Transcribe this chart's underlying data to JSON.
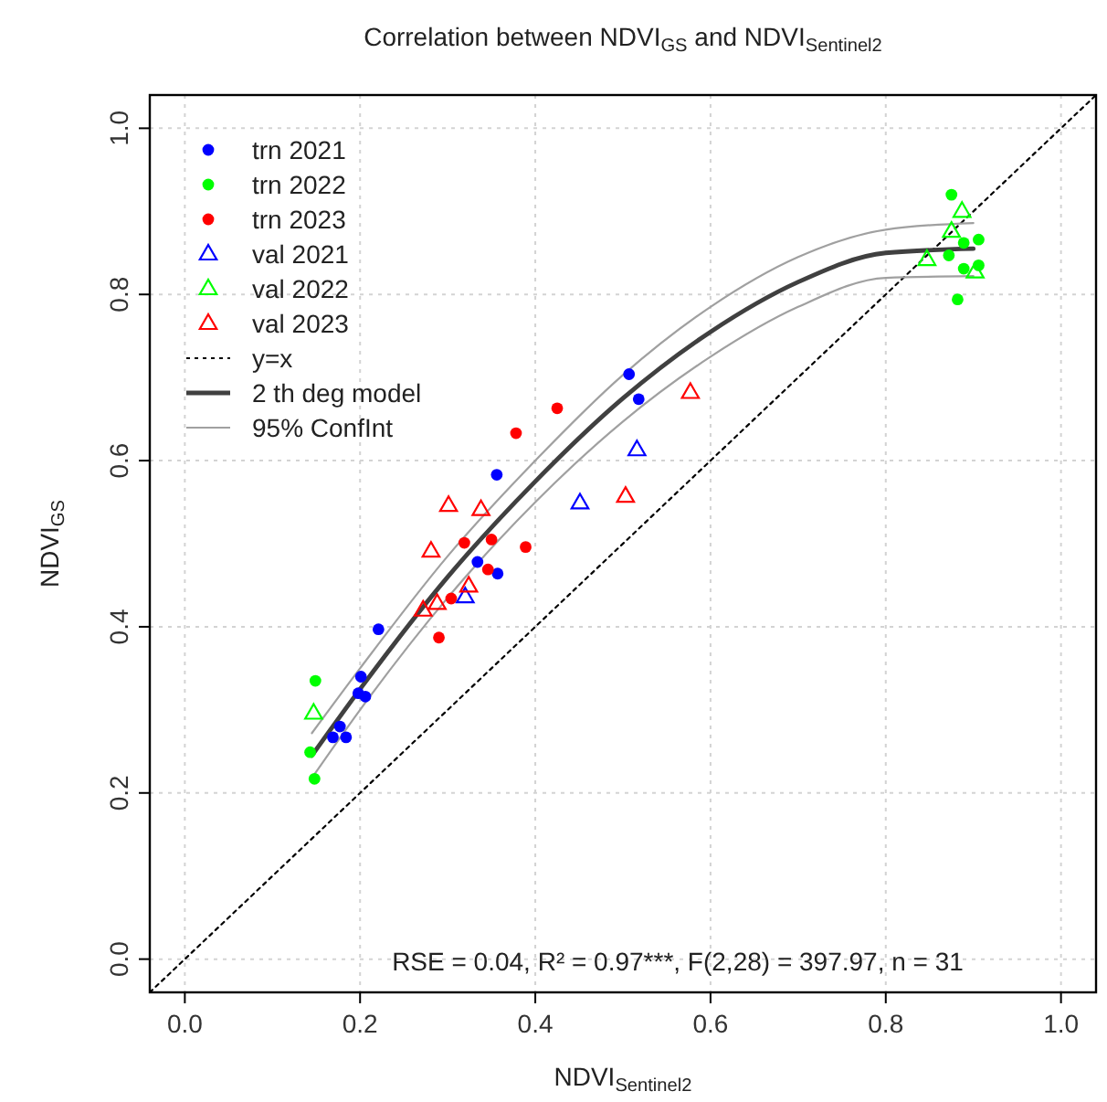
{
  "chart_data": {
    "type": "scatter",
    "title": "Correlation between NDVI$_{GS}$ and NDVI$_{Sentinel2}$",
    "xlabel": "NDVI$_{Sentinel2}$",
    "ylabel": "NDVI$_{GS}$",
    "xlim": [
      -0.04,
      1.04
    ],
    "ylim": [
      -0.04,
      1.04
    ],
    "xticks": [
      {
        "value": 0,
        "label": "0.0"
      },
      {
        "value": 0.2,
        "label": "0.2"
      },
      {
        "value": 0.4,
        "label": "0.4"
      },
      {
        "value": 0.6,
        "label": "0.6"
      },
      {
        "value": 0.8,
        "label": "0.8"
      },
      {
        "value": 1,
        "label": "1.0"
      }
    ],
    "yticks": [
      {
        "value": 0,
        "label": "0.0"
      },
      {
        "value": 0.2,
        "label": "0.2"
      },
      {
        "value": 0.4,
        "label": "0.4"
      },
      {
        "value": 0.6,
        "label": "0.6"
      },
      {
        "value": 0.8,
        "label": "0.8"
      },
      {
        "value": 1,
        "label": "1.0"
      }
    ],
    "grid": true,
    "legend": "top left",
    "annotations": [
      "RSE = 0.04, R² = 0.97***, F(2,28) = 397.97, n = 31"
    ],
    "series": [
      {
        "name": "trn 2021",
        "marker": "circle",
        "color": "#0000ff",
        "x": [
          0.356,
          0.334,
          0.357,
          0.221,
          0.201,
          0.198,
          0.206,
          0.177,
          0.169,
          0.184,
          0.507,
          0.518
        ],
        "values": [
          0.583,
          0.478,
          0.464,
          0.397,
          0.34,
          0.32,
          0.316,
          0.28,
          0.267,
          0.267,
          0.704,
          0.674
        ]
      },
      {
        "name": "trn 2022",
        "marker": "circle",
        "color": "#00ff00",
        "x": [
          0.149,
          0.143,
          0.148,
          0.875,
          0.889,
          0.906,
          0.872,
          0.889,
          0.906,
          0.882
        ],
        "values": [
          0.335,
          0.249,
          0.217,
          0.92,
          0.862,
          0.866,
          0.847,
          0.831,
          0.835,
          0.794
        ]
      },
      {
        "name": "trn 2023",
        "marker": "circle",
        "color": "#ff0000",
        "x": [
          0.425,
          0.378,
          0.319,
          0.35,
          0.389,
          0.346,
          0.304,
          0.29
        ],
        "values": [
          0.663,
          0.633,
          0.501,
          0.505,
          0.496,
          0.469,
          0.434,
          0.387
        ]
      },
      {
        "name": "val 2021",
        "marker": "triangle",
        "color": "#0000ff",
        "x": [
          0.516,
          0.451,
          0.32
        ],
        "values": [
          0.613,
          0.549,
          0.436
        ]
      },
      {
        "name": "val 2022",
        "marker": "triangle",
        "color": "#00ff00",
        "x": [
          0.147,
          0.887,
          0.875,
          0.847,
          0.902
        ],
        "values": [
          0.296,
          0.9,
          0.876,
          0.842,
          0.827
        ]
      },
      {
        "name": "val 2023",
        "marker": "triangle",
        "color": "#ff0000",
        "x": [
          0.577,
          0.503,
          0.301,
          0.338,
          0.281,
          0.324,
          0.288,
          0.272
        ],
        "values": [
          0.682,
          0.557,
          0.546,
          0.541,
          0.491,
          0.449,
          0.428,
          0.42
        ]
      },
      {
        "name": "y=x",
        "type": "line",
        "line_style": "dotted",
        "color": "#000000",
        "x": [
          -0.04,
          1.04
        ],
        "values": [
          -0.04,
          1.04
        ]
      },
      {
        "name": "2 th deg model",
        "type": "line",
        "line_style": "solid",
        "color": "#404040",
        "x": [
          0.145,
          0.2,
          0.3,
          0.4,
          0.5,
          0.6,
          0.7,
          0.8,
          0.9
        ],
        "values": [
          0.245,
          0.325,
          0.46,
          0.575,
          0.675,
          0.755,
          0.815,
          0.85,
          0.855
        ]
      },
      {
        "name": "95% ConfInt",
        "type": "line",
        "line_style": "solid",
        "color": "#a0a0a0",
        "x": [
          0.145,
          0.2,
          0.3,
          0.4,
          0.5,
          0.6,
          0.7,
          0.8,
          0.9
        ],
        "values": [
          0.272,
          0.35,
          0.485,
          0.6,
          0.703,
          0.785,
          0.845,
          0.878,
          0.886
        ]
      },
      {
        "type": "line",
        "line_style": "solid",
        "color": "#a0a0a0",
        "x": [
          0.145,
          0.2,
          0.3,
          0.4,
          0.5,
          0.6,
          0.7,
          0.8,
          0.9
        ],
        "values": [
          0.218,
          0.3,
          0.435,
          0.55,
          0.647,
          0.725,
          0.785,
          0.82,
          0.822
        ]
      }
    ]
  }
}
